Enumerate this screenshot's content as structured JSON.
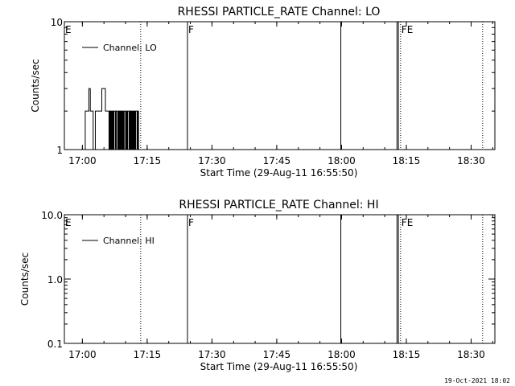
{
  "footer": {
    "timestamp": "19-Oct-2021 18:02"
  },
  "colors": {
    "background": "#ffffff",
    "foreground": "#000000"
  },
  "chart_data": [
    {
      "type": "line",
      "title": "RHESSI PARTICLE_RATE Channel: LO",
      "xlabel": "Start Time (29-Aug-11 16:55:50)",
      "ylabel": "Counts/sec",
      "y_scale": "log",
      "xlim": [
        "16:55:50",
        "18:35:30"
      ],
      "ylim": [
        1,
        10
      ],
      "x_ticks": [
        "17:00",
        "17:15",
        "17:30",
        "17:45",
        "18:00",
        "18:15",
        "18:30"
      ],
      "y_ticks": [
        "1",
        "10"
      ],
      "legend": {
        "position": "top-left",
        "entries": [
          "Channel: LO"
        ]
      },
      "markers": [
        {
          "time": "16:55:50",
          "label": "E",
          "style": "solid"
        },
        {
          "time": "17:13:30",
          "label": "",
          "style": "dotted"
        },
        {
          "time": "17:24:20",
          "label": "F",
          "style": "solid"
        },
        {
          "time": "17:59:50",
          "label": "",
          "style": "solid"
        },
        {
          "time": "18:12:50",
          "label": "",
          "style": "solid"
        },
        {
          "time": "18:13:10",
          "label": "",
          "style": "solid"
        },
        {
          "time": "18:13:40",
          "label": "FE",
          "style": "dotted"
        },
        {
          "time": "18:32:40",
          "label": "",
          "style": "dotted"
        }
      ],
      "series": [
        {
          "name": "Channel: LO",
          "x": [
            "17:00:20",
            "17:00:40",
            "17:01:00",
            "17:01:30",
            "17:01:50",
            "17:02:10",
            "17:02:30",
            "17:02:50",
            "17:03:00",
            "17:03:20",
            "17:03:40",
            "17:04:00",
            "17:04:30",
            "17:05:00",
            "17:05:20",
            "17:05:40",
            "17:06:00",
            "17:06:10",
            "17:06:20",
            "17:06:30",
            "17:06:40",
            "17:06:50",
            "17:07:00",
            "17:07:10",
            "17:07:20",
            "17:07:30",
            "17:07:40",
            "17:07:50",
            "17:08:00",
            "17:08:10",
            "17:08:20",
            "17:08:30",
            "17:08:40",
            "17:08:50",
            "17:09:00",
            "17:09:10",
            "17:09:20",
            "17:09:30",
            "17:09:40",
            "17:09:50",
            "17:10:00",
            "17:10:10",
            "17:10:20",
            "17:10:30",
            "17:10:40",
            "17:10:50",
            "17:11:00",
            "17:11:10",
            "17:11:20",
            "17:11:30",
            "17:11:40",
            "17:11:50",
            "17:12:00",
            "17:12:10",
            "17:12:20",
            "17:12:30",
            "17:12:40",
            "17:12:50",
            "17:13:00",
            "17:13:10"
          ],
          "values": [
            1,
            2,
            2,
            3,
            2,
            2,
            1,
            1,
            2,
            2,
            2,
            2,
            3,
            3,
            2,
            2,
            2,
            1,
            2,
            1,
            2,
            1,
            2,
            1,
            2,
            2,
            1,
            2,
            2,
            1,
            2,
            1,
            2,
            1,
            2,
            1,
            2,
            1,
            2,
            2,
            1,
            2,
            1,
            2,
            2,
            1,
            2,
            1,
            2,
            1,
            2,
            1,
            2,
            1,
            2,
            2,
            1,
            2,
            1,
            1
          ]
        }
      ]
    },
    {
      "type": "line",
      "title": "RHESSI PARTICLE_RATE Channel: HI",
      "xlabel": "Start Time (29-Aug-11 16:55:50)",
      "ylabel": "Counts/sec",
      "y_scale": "log",
      "xlim": [
        "16:55:50",
        "18:35:30"
      ],
      "ylim": [
        0.1,
        10
      ],
      "x_ticks": [
        "17:00",
        "17:15",
        "17:30",
        "17:45",
        "18:00",
        "18:15",
        "18:30"
      ],
      "y_ticks": [
        "0.1",
        "1.0",
        "10.0"
      ],
      "legend": {
        "position": "top-left",
        "entries": [
          "Channel: HI"
        ]
      },
      "markers": [
        {
          "time": "16:55:50",
          "label": "E",
          "style": "solid"
        },
        {
          "time": "17:13:30",
          "label": "",
          "style": "dotted"
        },
        {
          "time": "17:24:20",
          "label": "F",
          "style": "solid"
        },
        {
          "time": "17:59:50",
          "label": "",
          "style": "solid"
        },
        {
          "time": "18:12:50",
          "label": "",
          "style": "solid"
        },
        {
          "time": "18:13:10",
          "label": "",
          "style": "solid"
        },
        {
          "time": "18:13:40",
          "label": "FE",
          "style": "dotted"
        },
        {
          "time": "18:32:40",
          "label": "",
          "style": "dotted"
        }
      ],
      "series": [
        {
          "name": "Channel: HI",
          "x": [],
          "values": []
        }
      ]
    }
  ]
}
